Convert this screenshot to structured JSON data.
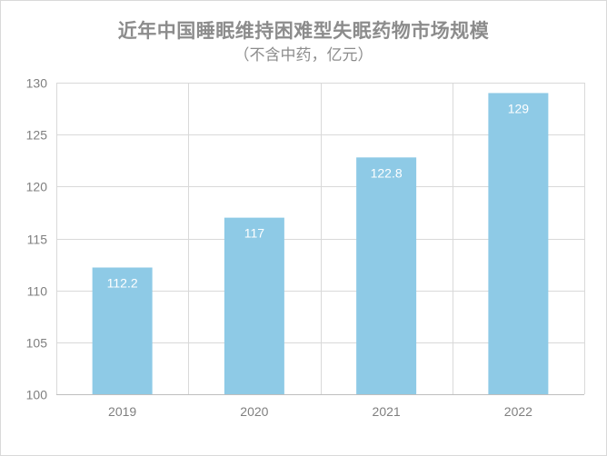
{
  "chart_data": {
    "type": "bar",
    "title": "近年中国睡眠维持困难型失眠药物市场规模",
    "subtitle": "（不含中药，亿元）",
    "categories": [
      "2019",
      "2020",
      "2021",
      "2022"
    ],
    "values": [
      112.2,
      117,
      122.8,
      129
    ],
    "data_labels": [
      "112.2",
      "117",
      "122.8",
      "129"
    ],
    "ylim": [
      100,
      130
    ],
    "yticks": [
      100,
      105,
      110,
      115,
      120,
      125,
      130
    ],
    "xlabel": "",
    "ylabel": "",
    "grid": true,
    "bar_color": "#8ecae6"
  }
}
